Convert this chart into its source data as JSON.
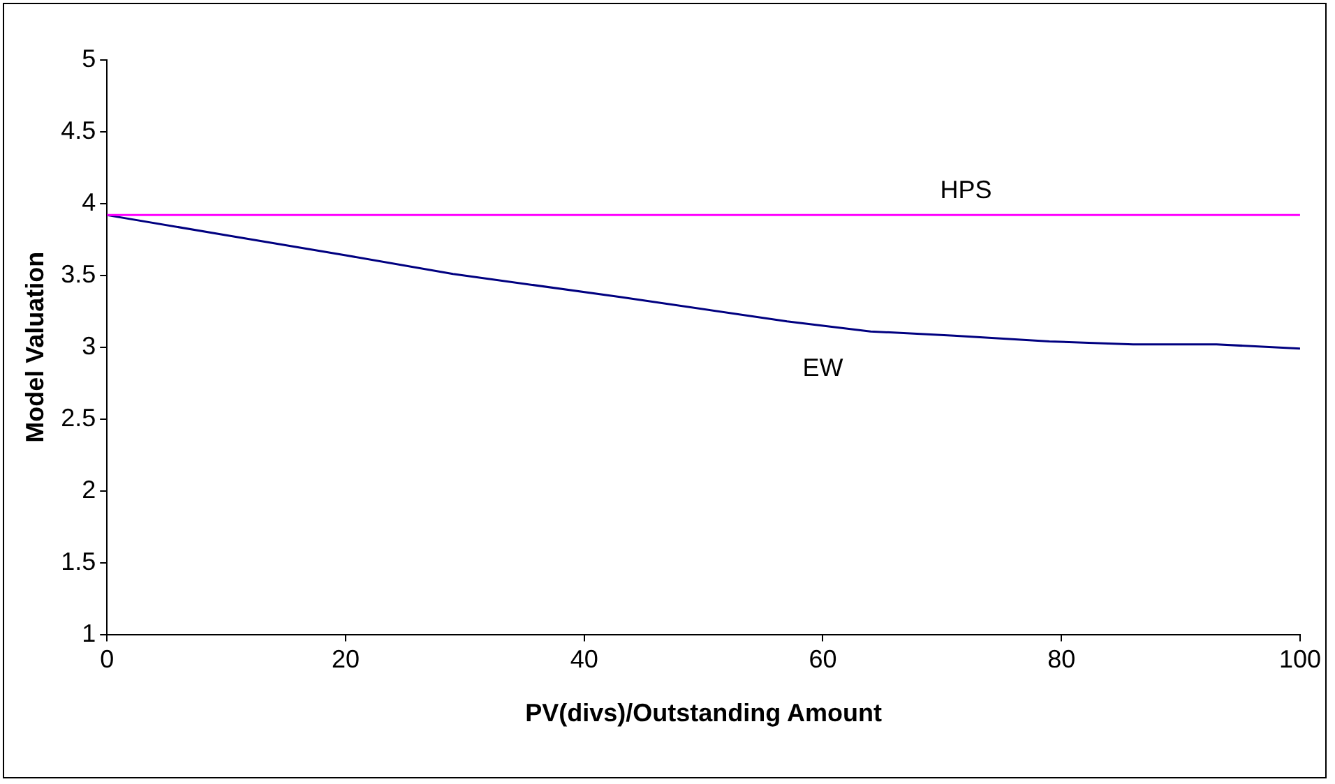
{
  "chart_data": {
    "type": "line",
    "xlabel": "PV(divs)/Outstanding Amount",
    "ylabel": "Model Valuation",
    "xlim": [
      0,
      100
    ],
    "xticks": [
      0,
      20,
      40,
      60,
      80,
      100
    ],
    "ylim": [
      1,
      5
    ],
    "yticks": [
      1,
      1.5,
      2,
      2.5,
      3,
      3.5,
      4,
      4.5,
      5
    ],
    "grid": false,
    "legend": false,
    "marker": "none",
    "line_style": "solid",
    "series": [
      {
        "name": "HPS",
        "color": "#ff00ff",
        "x": [
          0,
          100
        ],
        "values": [
          3.92,
          3.92
        ]
      },
      {
        "name": "EW",
        "color": "#000080",
        "x": [
          0,
          10,
          20,
          29,
          43,
          57,
          64,
          71,
          79,
          86,
          93,
          100
        ],
        "values": [
          3.92,
          3.78,
          3.64,
          3.51,
          3.35,
          3.18,
          3.11,
          3.08,
          3.04,
          3.02,
          3.02,
          2.99
        ]
      }
    ]
  }
}
